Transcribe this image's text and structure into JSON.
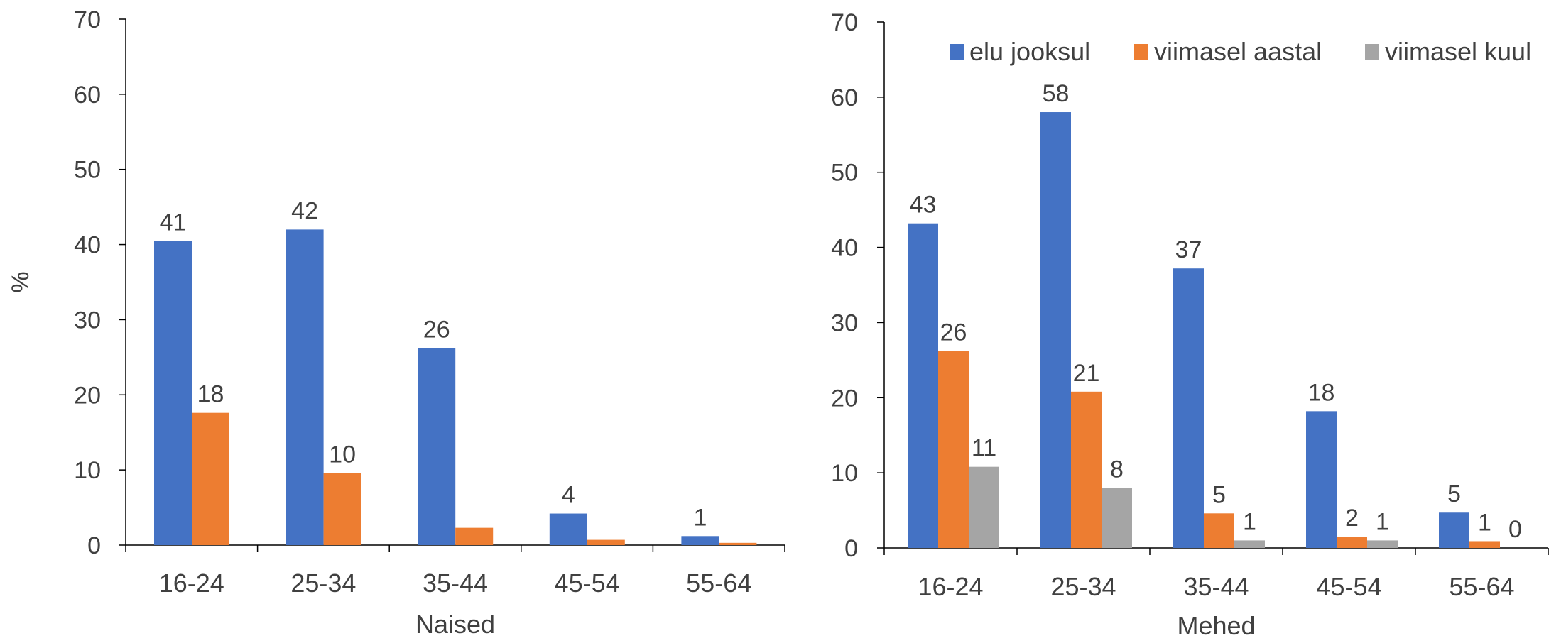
{
  "colors": {
    "elu_jooksul": "#4472C4",
    "viimasel_aastal": "#ED7D31",
    "viimasel_kuul": "#A5A5A5",
    "axis": "#000000",
    "text": "#404040"
  },
  "chart_data": [
    {
      "type": "bar",
      "xlabel": "Naised",
      "ylabel": "%",
      "ylim": [
        0,
        70
      ],
      "yticks": [
        0,
        10,
        20,
        30,
        40,
        50,
        60,
        70
      ],
      "grid": false,
      "categories": [
        "16-24",
        "25-34",
        "35-44",
        "45-54",
        "55-64"
      ],
      "series": [
        {
          "name": "elu jooksul",
          "values": [
            40.5,
            42,
            26.2,
            4.2,
            1.2
          ],
          "labels": [
            "41",
            "42",
            "26",
            "4",
            "1"
          ]
        },
        {
          "name": "viimasel aastal",
          "values": [
            17.6,
            9.6,
            2.3,
            0.7,
            0.3
          ],
          "labels": [
            "18",
            "10",
            "",
            "",
            ""
          ]
        }
      ]
    },
    {
      "type": "bar",
      "xlabel": "Mehed",
      "ylabel": "",
      "ylim": [
        0,
        70
      ],
      "yticks": [
        0,
        10,
        20,
        30,
        40,
        50,
        60,
        70
      ],
      "grid": false,
      "legend": "top",
      "categories": [
        "16-24",
        "25-34",
        "35-44",
        "45-54",
        "55-64"
      ],
      "series": [
        {
          "name": "elu jooksul",
          "values": [
            43.2,
            58,
            37.2,
            18.2,
            4.7
          ],
          "labels": [
            "43",
            "58",
            "37",
            "18",
            "5"
          ]
        },
        {
          "name": "viimasel aastal",
          "values": [
            26.2,
            20.8,
            4.6,
            1.5,
            0.9
          ],
          "labels": [
            "26",
            "21",
            "5",
            "2",
            "1"
          ]
        },
        {
          "name": "viimasel kuul",
          "values": [
            10.8,
            8,
            1,
            1,
            0
          ],
          "labels": [
            "11",
            "8",
            "1",
            "1",
            "0"
          ]
        }
      ]
    }
  ]
}
